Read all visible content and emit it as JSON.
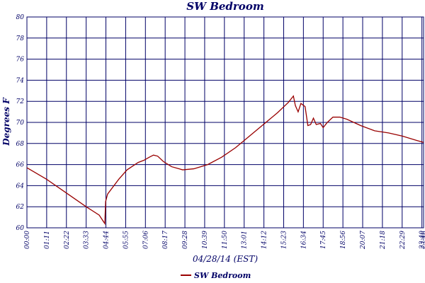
{
  "chart_data": {
    "type": "line",
    "title": "SW Bedroom",
    "x_label": "04/28/14 (EST)",
    "y_label": "Degrees F",
    "x": [
      0,
      71,
      142,
      213,
      260,
      280,
      283,
      290,
      330,
      360,
      400,
      420,
      440,
      455,
      470,
      490,
      520,
      560,
      600,
      650,
      700,
      750,
      800,
      850,
      900,
      940,
      958,
      965,
      975,
      985,
      1000,
      1010,
      1020,
      1030,
      1040,
      1055,
      1065,
      1080,
      1100,
      1125,
      1150,
      1200,
      1250,
      1300,
      1350,
      1400,
      1426
    ],
    "series": [
      {
        "name": "SW Bedroom",
        "color": "#990000",
        "values": [
          65.7,
          64.6,
          63.3,
          62.0,
          61.2,
          60.4,
          62.5,
          63.2,
          64.6,
          65.5,
          66.2,
          66.4,
          66.7,
          66.9,
          66.8,
          66.3,
          65.8,
          65.5,
          65.6,
          66.0,
          66.7,
          67.6,
          68.7,
          69.8,
          70.9,
          71.9,
          72.5,
          71.6,
          71.0,
          71.8,
          71.5,
          69.7,
          69.8,
          70.4,
          69.8,
          69.9,
          69.5,
          70.0,
          70.5,
          70.5,
          70.3,
          69.7,
          69.2,
          69.0,
          68.7,
          68.3,
          68.1
        ]
      }
    ],
    "xlim": [
      0,
      1426
    ],
    "xticks": [
      {
        "value": 0,
        "label": "00:00"
      },
      {
        "value": 71,
        "label": "01:11"
      },
      {
        "value": 142,
        "label": "02:22"
      },
      {
        "value": 213,
        "label": "03:33"
      },
      {
        "value": 284,
        "label": "04:44"
      },
      {
        "value": 355,
        "label": "05:55"
      },
      {
        "value": 426,
        "label": "07:06"
      },
      {
        "value": 497,
        "label": "08:17"
      },
      {
        "value": 568,
        "label": "09:28"
      },
      {
        "value": 639,
        "label": "10:39"
      },
      {
        "value": 710,
        "label": "11:50"
      },
      {
        "value": 781,
        "label": "13:01"
      },
      {
        "value": 852,
        "label": "14:12"
      },
      {
        "value": 923,
        "label": "15:23"
      },
      {
        "value": 994,
        "label": "16:34"
      },
      {
        "value": 1065,
        "label": "17:45"
      },
      {
        "value": 1136,
        "label": "18:56"
      },
      {
        "value": 1207,
        "label": "20:07"
      },
      {
        "value": 1278,
        "label": "21:18"
      },
      {
        "value": 1349,
        "label": "22:29"
      },
      {
        "value": 1420,
        "label": "23:40"
      },
      {
        "value": 1426,
        "label": "23:46"
      }
    ],
    "ylim": [
      60,
      80
    ],
    "yticks": [
      60,
      62,
      64,
      66,
      68,
      70,
      72,
      74,
      76,
      78,
      80
    ],
    "grid": true
  }
}
